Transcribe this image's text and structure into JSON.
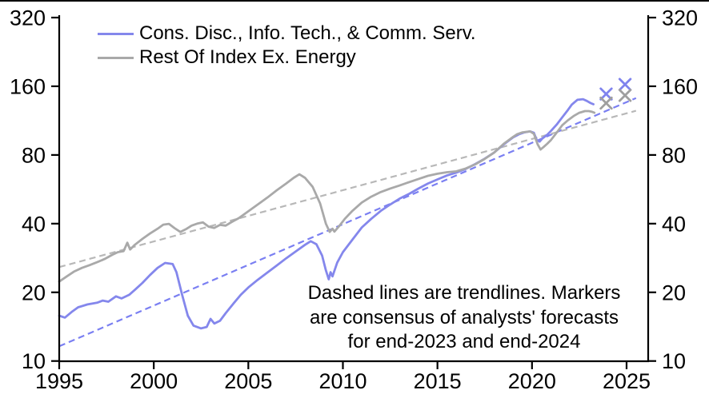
{
  "chart_data": {
    "type": "line",
    "title": "",
    "xlabel": "",
    "ylabel": "",
    "y_scale": "log",
    "xlim": [
      1995,
      2026.1
    ],
    "ylim": [
      10,
      320
    ],
    "x_ticks": [
      "1995",
      "2000",
      "2005",
      "2010",
      "2015",
      "2020",
      "2025"
    ],
    "y_ticks": [
      "320",
      "160",
      "80",
      "40",
      "20",
      "10"
    ],
    "y_tick_values": [
      320,
      160,
      80,
      40,
      20,
      10
    ],
    "x_tick_values": [
      1995,
      2000,
      2005,
      2010,
      2015,
      2020,
      2025
    ],
    "grid": false,
    "legend_position": "top-left-inside",
    "annotation": "Dashed lines are trendlines. Markers\nare consensus of analysts' forecasts\nfor end-2023 and end-2024",
    "series": [
      {
        "name": "Cons. Disc., Info. Tech., & Comm. Serv.",
        "color": "#8487ec",
        "style": "solid",
        "points": [
          [
            1995.0,
            15.8
          ],
          [
            1995.3,
            15.5
          ],
          [
            1995.7,
            16.5
          ],
          [
            1996.0,
            17.2
          ],
          [
            1996.5,
            17.7
          ],
          [
            1997.0,
            18.0
          ],
          [
            1997.3,
            18.4
          ],
          [
            1997.6,
            18.2
          ],
          [
            1998.0,
            19.2
          ],
          [
            1998.3,
            18.8
          ],
          [
            1998.7,
            19.5
          ],
          [
            1999.0,
            20.5
          ],
          [
            1999.4,
            22.0
          ],
          [
            1999.8,
            23.8
          ],
          [
            2000.2,
            25.6
          ],
          [
            2000.6,
            26.9
          ],
          [
            2001.0,
            26.6
          ],
          [
            2001.2,
            24.5
          ],
          [
            2001.5,
            19.5
          ],
          [
            2001.8,
            15.8
          ],
          [
            2002.1,
            14.3
          ],
          [
            2002.5,
            13.9
          ],
          [
            2002.8,
            14.1
          ],
          [
            2003.0,
            15.3
          ],
          [
            2003.2,
            14.6
          ],
          [
            2003.5,
            15.0
          ],
          [
            2003.8,
            16.2
          ],
          [
            2004.2,
            17.8
          ],
          [
            2004.6,
            19.5
          ],
          [
            2005.0,
            21.0
          ],
          [
            2005.5,
            22.7
          ],
          [
            2006.0,
            24.4
          ],
          [
            2006.5,
            26.2
          ],
          [
            2007.0,
            28.2
          ],
          [
            2007.5,
            30.2
          ],
          [
            2008.0,
            32.3
          ],
          [
            2008.3,
            33.5
          ],
          [
            2008.6,
            32.5
          ],
          [
            2008.9,
            29.0
          ],
          [
            2009.1,
            25.0
          ],
          [
            2009.25,
            22.8
          ],
          [
            2009.35,
            24.5
          ],
          [
            2009.45,
            23.5
          ],
          [
            2009.7,
            27.0
          ],
          [
            2010.0,
            30.0
          ],
          [
            2010.5,
            34.0
          ],
          [
            2011.0,
            38.5
          ],
          [
            2011.5,
            42.0
          ],
          [
            2012.0,
            45.5
          ],
          [
            2012.5,
            48.5
          ],
          [
            2013.0,
            51.5
          ],
          [
            2013.5,
            54.0
          ],
          [
            2014.0,
            57.0
          ],
          [
            2014.5,
            60.0
          ],
          [
            2015.0,
            62.5
          ],
          [
            2015.5,
            65.0
          ],
          [
            2016.0,
            67.0
          ],
          [
            2016.5,
            69.5
          ],
          [
            2017.0,
            73.0
          ],
          [
            2017.5,
            77.0
          ],
          [
            2018.0,
            82.0
          ],
          [
            2018.5,
            89.0
          ],
          [
            2019.0,
            95.5
          ],
          [
            2019.3,
            98.5
          ],
          [
            2019.6,
            100.5
          ],
          [
            2019.9,
            101.5
          ],
          [
            2020.1,
            100.0
          ],
          [
            2020.25,
            93.0
          ],
          [
            2020.4,
            91.5
          ],
          [
            2020.55,
            94.5
          ],
          [
            2020.8,
            98.0
          ],
          [
            2021.0,
            102.0
          ],
          [
            2021.3,
            108.5
          ],
          [
            2021.6,
            117.0
          ],
          [
            2021.9,
            126.0
          ],
          [
            2022.1,
            133.0
          ],
          [
            2022.4,
            139.5
          ],
          [
            2022.7,
            140.5
          ],
          [
            2022.9,
            138.0
          ],
          [
            2023.1,
            135.0
          ],
          [
            2023.25,
            133.5
          ]
        ]
      },
      {
        "name": "Rest Of Index Ex. Energy",
        "color": "#a9a9a9",
        "style": "solid",
        "points": [
          [
            1995.0,
            22.3
          ],
          [
            1995.4,
            23.5
          ],
          [
            1995.8,
            24.7
          ],
          [
            1996.2,
            25.6
          ],
          [
            1996.6,
            26.3
          ],
          [
            1997.0,
            27.1
          ],
          [
            1997.4,
            28.0
          ],
          [
            1997.8,
            29.2
          ],
          [
            1998.1,
            30.0
          ],
          [
            1998.4,
            30.3
          ],
          [
            1998.6,
            33.0
          ],
          [
            1998.75,
            30.8
          ],
          [
            1999.0,
            32.3
          ],
          [
            1999.4,
            34.3
          ],
          [
            1999.8,
            36.2
          ],
          [
            2000.2,
            38.0
          ],
          [
            2000.5,
            39.6
          ],
          [
            2000.8,
            39.9
          ],
          [
            2001.1,
            38.2
          ],
          [
            2001.4,
            36.8
          ],
          [
            2001.7,
            37.8
          ],
          [
            2002.0,
            39.2
          ],
          [
            2002.3,
            40.0
          ],
          [
            2002.6,
            40.5
          ],
          [
            2002.9,
            38.8
          ],
          [
            2003.2,
            38.3
          ],
          [
            2003.5,
            39.5
          ],
          [
            2003.8,
            39.2
          ],
          [
            2004.1,
            40.6
          ],
          [
            2004.5,
            42.3
          ],
          [
            2005.0,
            45.3
          ],
          [
            2005.5,
            48.5
          ],
          [
            2006.0,
            52.0
          ],
          [
            2006.5,
            56.0
          ],
          [
            2007.0,
            60.0
          ],
          [
            2007.4,
            63.5
          ],
          [
            2007.7,
            65.8
          ],
          [
            2008.0,
            63.5
          ],
          [
            2008.4,
            58.0
          ],
          [
            2008.8,
            49.0
          ],
          [
            2009.1,
            40.0
          ],
          [
            2009.3,
            36.8
          ],
          [
            2009.45,
            38.0
          ],
          [
            2009.55,
            36.9
          ],
          [
            2009.8,
            39.0
          ],
          [
            2010.1,
            42.0
          ],
          [
            2010.5,
            45.5
          ],
          [
            2011.0,
            49.5
          ],
          [
            2011.5,
            52.5
          ],
          [
            2012.0,
            55.0
          ],
          [
            2012.5,
            57.0
          ],
          [
            2013.0,
            58.8
          ],
          [
            2013.5,
            60.8
          ],
          [
            2014.0,
            62.8
          ],
          [
            2014.5,
            64.8
          ],
          [
            2015.0,
            66.2
          ],
          [
            2015.5,
            67.2
          ],
          [
            2016.0,
            67.8
          ],
          [
            2016.5,
            69.8
          ],
          [
            2017.0,
            72.8
          ],
          [
            2017.5,
            76.8
          ],
          [
            2018.0,
            82.0
          ],
          [
            2018.5,
            89.5
          ],
          [
            2019.0,
            96.0
          ],
          [
            2019.2,
            98.5
          ],
          [
            2019.5,
            100.5
          ],
          [
            2019.9,
            101.5
          ],
          [
            2020.1,
            99.0
          ],
          [
            2020.3,
            89.0
          ],
          [
            2020.45,
            84.5
          ],
          [
            2020.6,
            86.5
          ],
          [
            2020.8,
            89.5
          ],
          [
            2021.0,
            93.0
          ],
          [
            2021.3,
            100.0
          ],
          [
            2021.6,
            108.0
          ],
          [
            2021.9,
            113.5
          ],
          [
            2022.2,
            118.5
          ],
          [
            2022.5,
            122.5
          ],
          [
            2022.8,
            124.5
          ],
          [
            2023.0,
            124.5
          ],
          [
            2023.15,
            123.8
          ],
          [
            2023.3,
            122.5
          ]
        ]
      }
    ],
    "trendlines": [
      {
        "series": "Cons. Disc., Info. Tech., & Comm. Serv.",
        "color": "#7a7ff2",
        "style": "dashed",
        "points": [
          [
            1995.0,
            11.6
          ],
          [
            2025.5,
            142.0
          ]
        ]
      },
      {
        "series": "Rest Of Index Ex. Energy",
        "color": "#b8b8b8",
        "style": "dashed",
        "points": [
          [
            1995.0,
            25.8
          ],
          [
            2025.5,
            125.0
          ]
        ]
      }
    ],
    "markers": [
      {
        "series": "Cons. Disc., Info. Tech., & Comm. Serv.",
        "shape": "x",
        "color": "#7f83ee",
        "x": 2023.92,
        "y": 148,
        "label": "end-2023 forecast"
      },
      {
        "series": "Cons. Disc., Info. Tech., & Comm. Serv.",
        "shape": "x",
        "color": "#7f83ee",
        "x": 2024.92,
        "y": 163,
        "label": "end-2024 forecast"
      },
      {
        "series": "Rest Of Index Ex. Energy",
        "shape": "x",
        "color": "#9f9f9f",
        "x": 2023.92,
        "y": 135,
        "label": "end-2023 forecast"
      },
      {
        "series": "Rest Of Index Ex. Energy",
        "shape": "x",
        "color": "#9f9f9f",
        "x": 2024.92,
        "y": 146,
        "label": "end-2024 forecast"
      }
    ],
    "axis_color": "#000000",
    "background_color": "#ffffff"
  }
}
